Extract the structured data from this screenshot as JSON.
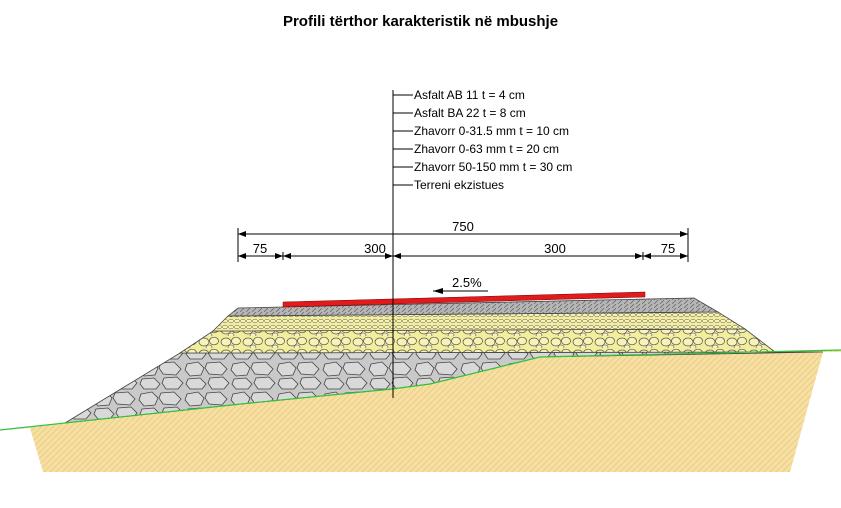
{
  "title": "Profili tërthor karakteristik në mbushje",
  "layers": [
    "Asfalt AB 11 t = 4 cm",
    "Asfalt BA 22 t = 8 cm",
    "Zhavorr 0-31.5 mm  t = 10 cm",
    "Zhavorr 0-63 mm t = 20 cm",
    "Zhavorr 50-150 mm t = 30 cm",
    "Terreni ekzistues"
  ],
  "dimensions": {
    "total": "750",
    "left_shoulder": "75",
    "left_lane": "300",
    "right_lane": "300",
    "right_shoulder": "75"
  },
  "slope": "2.5%",
  "colors": {
    "asphalt_top": "#e11b1b",
    "asphalt_base": "#9a9a9a",
    "gravel_fine": "#f3ee9c",
    "gravel_coarse": "#d6d6d6",
    "terrain": "#f6dfa0",
    "ground_line": "#31c23a"
  }
}
